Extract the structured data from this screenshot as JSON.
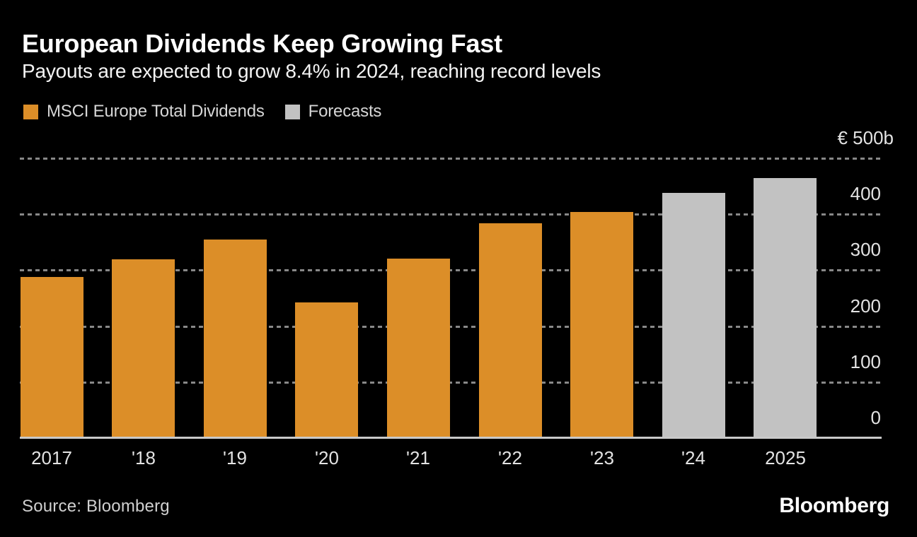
{
  "chart_data": {
    "type": "bar",
    "title": "European Dividends Keep Growing Fast",
    "subtitle": "Payouts are expected to grow 8.4% in 2024, reaching record levels",
    "categories": [
      "2017",
      "'18",
      "'19",
      "'20",
      "'21",
      "'22",
      "'23",
      "'24",
      "2025"
    ],
    "values": [
      286,
      318,
      353,
      241,
      320,
      383,
      403,
      437,
      463
    ],
    "forecast": [
      false,
      false,
      false,
      false,
      false,
      false,
      false,
      true,
      true
    ],
    "unit": "billions of euros",
    "ylabel": "",
    "xlabel": "",
    "ylim": [
      0,
      500
    ],
    "yticks": [
      0,
      100,
      200,
      300,
      400,
      500
    ],
    "ytick_labels": [
      "0",
      "100",
      "200",
      "300",
      "400",
      "€ 500b"
    ],
    "grid": "horizontal-dashed",
    "legend_position": "top-left",
    "legend": [
      {
        "label": "MSCI Europe Total Dividends",
        "color": "#dc8e28",
        "role": "actual"
      },
      {
        "label": "Forecasts",
        "color": "#c2c2c2",
        "role": "forecast"
      }
    ]
  },
  "footer": {
    "source": "Source: Bloomberg",
    "brand": "Bloomberg"
  }
}
